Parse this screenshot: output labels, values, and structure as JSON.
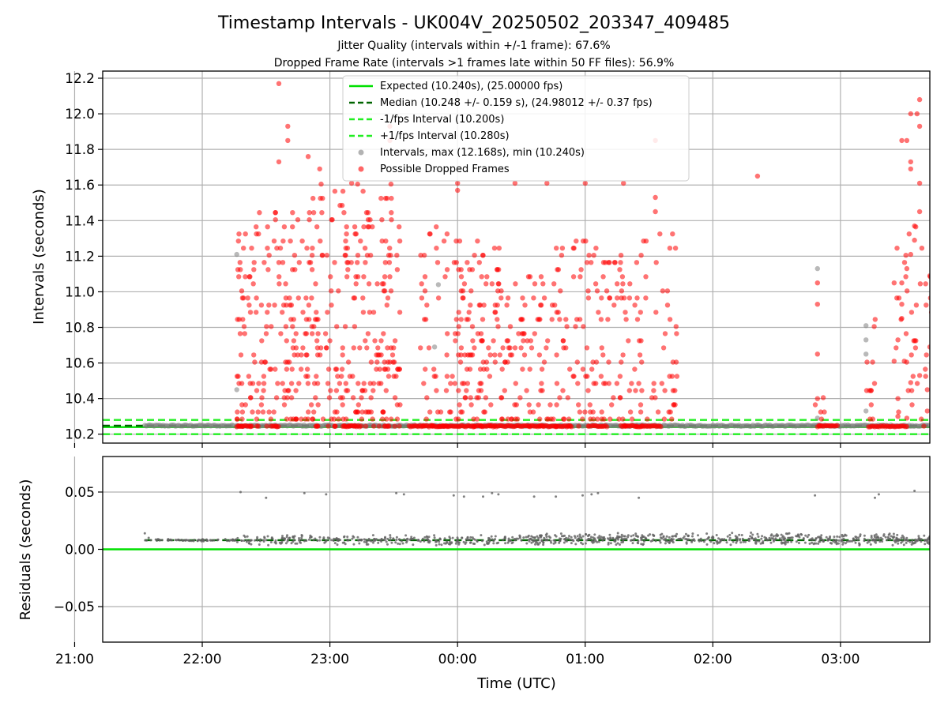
{
  "title": "Timestamp Intervals - UK004V_20250502_203347_409485",
  "subtitle_lines": [
    "Jitter Quality (intervals within +/-1 frame): 67.6%",
    "Dropped Frame Rate (intervals >1 frames late within 50 FF files): 56.9%"
  ],
  "colors": {
    "expected": "#00e000",
    "median": "#006400",
    "interval_limit": "#22ee22",
    "grey_points": "#808080",
    "dropped_points": "#ff0000",
    "residual_points": "#606060"
  },
  "chart_data": [
    {
      "type": "scatter",
      "ylabel": "Intervals (seconds)",
      "grid": true,
      "legend_placement": "top-center",
      "x_unit": "hours since 20:00 UTC",
      "xlim": [
        1.22,
        7.7
      ],
      "ylim": [
        10.15,
        12.24
      ],
      "yticks": [
        10.2,
        10.4,
        10.6,
        10.8,
        11.0,
        11.2,
        11.4,
        11.6,
        11.8,
        12.0,
        12.2
      ],
      "ytick_labels": [
        "10.2",
        "10.4",
        "10.6",
        "10.8",
        "11.0",
        "11.2",
        "11.4",
        "11.6",
        "11.8",
        "12.0",
        "12.2"
      ],
      "hlines": [
        {
          "name": "Expected (10.240s), (25.00000 fps)",
          "y": 10.24,
          "style": "solid",
          "color_key": "expected"
        },
        {
          "name": "Median (10.248 +/- 0.159 s), (24.98012 +/- 0.37 fps)",
          "y": 10.248,
          "style": "dashed",
          "color_key": "median"
        },
        {
          "name": "-1/fps Interval (10.200s)",
          "y": 10.2,
          "style": "dashed",
          "color_key": "interval_limit"
        },
        {
          "name": "+1/fps Interval (10.280s)",
          "y": 10.28,
          "style": "dashed",
          "color_key": "interval_limit"
        }
      ],
      "series": [
        {
          "name": "Intervals, max (12.168s), min (10.240s)",
          "color_key": "grey_points",
          "baseline_ranges": [
            [
              1.55,
              2.25
            ],
            [
              2.27,
              7.7
            ]
          ],
          "baseline_y": 10.248,
          "points": [
            [
              2.27,
              11.21
            ],
            [
              2.27,
              10.45
            ],
            [
              2.27,
              10.25
            ],
            [
              4.55,
              10.25
            ],
            [
              3.85,
              11.04
            ],
            [
              3.82,
              10.69
            ],
            [
              6.82,
              11.13
            ],
            [
              6.82,
              10.29
            ],
            [
              7.2,
              10.81
            ],
            [
              7.2,
              10.73
            ],
            [
              7.2,
              10.65
            ],
            [
              7.2,
              10.33
            ]
          ]
        },
        {
          "name": "Possible Dropped Frames",
          "color_key": "dropped_points",
          "clusters": [
            {
              "x": [
                2.27,
                2.5
              ],
              "y": [
                10.24,
                11.5
              ],
              "n": 75
            },
            {
              "x": [
                2.5,
                2.85
              ],
              "y": [
                10.24,
                11.5
              ],
              "n": 110
            },
            {
              "x": [
                2.85,
                3.15
              ],
              "y": [
                10.24,
                11.6
              ],
              "n": 105
            },
            {
              "x": [
                3.15,
                3.55
              ],
              "y": [
                10.24,
                11.6
              ],
              "n": 150
            },
            {
              "x": [
                3.7,
                4.0
              ],
              "y": [
                10.24,
                11.4
              ],
              "n": 55
            },
            {
              "x": [
                4.0,
                4.35
              ],
              "y": [
                10.24,
                11.3
              ],
              "n": 115
            },
            {
              "x": [
                4.35,
                4.75
              ],
              "y": [
                10.24,
                11.1
              ],
              "n": 80
            },
            {
              "x": [
                4.75,
                5.1
              ],
              "y": [
                10.24,
                11.3
              ],
              "n": 80
            },
            {
              "x": [
                5.1,
                5.45
              ],
              "y": [
                10.24,
                11.2
              ],
              "n": 75
            },
            {
              "x": [
                5.45,
                5.72
              ],
              "y": [
                10.24,
                11.5
              ],
              "n": 40
            },
            {
              "x": [
                6.8,
                6.88
              ],
              "y": [
                10.24,
                10.4
              ],
              "n": 6
            },
            {
              "x": [
                7.2,
                7.28
              ],
              "y": [
                10.24,
                10.95
              ],
              "n": 12
            },
            {
              "x": [
                7.43,
                7.78
              ],
              "y": [
                10.24,
                11.4
              ],
              "n": 55
            }
          ],
          "baseline_ranges": [
            [
              2.27,
              2.38
            ],
            [
              2.55,
              2.6
            ],
            [
              3.1,
              3.25
            ],
            [
              3.62,
              4.9
            ],
            [
              5.05,
              5.18
            ],
            [
              5.28,
              5.6
            ],
            [
              6.82,
              6.98
            ],
            [
              7.22,
              7.52
            ],
            [
              7.72,
              7.92
            ]
          ],
          "baseline_y": 10.245,
          "points": [
            [
              2.6,
              12.17
            ],
            [
              2.67,
              11.93
            ],
            [
              2.67,
              11.85
            ],
            [
              2.6,
              11.73
            ],
            [
              2.83,
              11.76
            ],
            [
              2.92,
              11.69
            ],
            [
              3.17,
              11.61
            ],
            [
              3.47,
              11.93
            ],
            [
              3.47,
              11.85
            ],
            [
              4.0,
              11.61
            ],
            [
              4.0,
              11.57
            ],
            [
              4.45,
              11.61
            ],
            [
              4.7,
              11.61
            ],
            [
              5.0,
              11.61
            ],
            [
              5.3,
              11.61
            ],
            [
              5.55,
              11.53
            ],
            [
              5.55,
              11.45
            ],
            [
              5.55,
              11.85
            ],
            [
              6.35,
              11.65
            ],
            [
              6.82,
              11.05
            ],
            [
              6.82,
              10.93
            ],
            [
              6.82,
              10.65
            ],
            [
              6.82,
              10.4
            ],
            [
              7.48,
              11.85
            ],
            [
              7.52,
              11.85
            ],
            [
              7.55,
              11.73
            ],
            [
              7.55,
              11.69
            ],
            [
              7.62,
              12.08
            ],
            [
              7.6,
              12.0
            ],
            [
              7.55,
              12.0
            ],
            [
              7.62,
              11.93
            ],
            [
              7.62,
              11.61
            ],
            [
              7.62,
              11.45
            ],
            [
              7.58,
              11.37
            ],
            [
              7.58,
              11.29
            ],
            [
              7.55,
              11.21
            ],
            [
              7.52,
              11.13
            ],
            [
              7.48,
              11.05
            ],
            [
              7.48,
              10.93
            ],
            [
              7.48,
              10.85
            ],
            [
              7.45,
              10.73
            ],
            [
              7.5,
              10.61
            ],
            [
              7.55,
              10.49
            ],
            [
              7.7,
              11.09
            ],
            [
              7.7,
              10.69
            ],
            [
              7.62,
              10.53
            ],
            [
              7.68,
              10.45
            ],
            [
              7.68,
              10.33
            ],
            [
              7.45,
              10.4
            ],
            [
              7.45,
              10.3
            ],
            [
              7.52,
              10.29
            ],
            [
              7.42,
              11.05
            ],
            [
              7.42,
              10.61
            ]
          ]
        }
      ]
    },
    {
      "type": "scatter",
      "ylabel": "Residuals (seconds)",
      "xlabel": "Time (UTC)",
      "grid": true,
      "x_unit": "hours since 20:00 UTC",
      "xlim": [
        1.22,
        7.7
      ],
      "ylim": [
        -0.081,
        0.081
      ],
      "yticks": [
        -0.05,
        0.0,
        0.05
      ],
      "ytick_labels": [
        "−0.05",
        "0.00",
        "0.05"
      ],
      "xticks": [
        1,
        2,
        3,
        4,
        5,
        6,
        7
      ],
      "xtick_labels": [
        "21:00",
        "22:00",
        "23:00",
        "00:00",
        "01:00",
        "02:00",
        "03:00"
      ],
      "hlines": [
        {
          "y": 0.0,
          "style": "solid",
          "color_key": "expected"
        },
        {
          "y": 0.008,
          "style": "dashed",
          "color_key": "median",
          "x_range": [
            1.55,
            7.7
          ]
        }
      ],
      "series": [
        {
          "name": "Residuals",
          "color_key": "residual_points",
          "bands": [
            {
              "x": [
                1.55,
                2.27
              ],
              "y": [
                0.007,
                0.009
              ],
              "n": 70
            },
            {
              "x": [
                2.27,
                4.55
              ],
              "y": [
                0.003,
                0.013
              ],
              "n": 300
            },
            {
              "x": [
                4.55,
                7.42
              ],
              "y": [
                0.003,
                0.015
              ],
              "n": 520
            },
            {
              "x": [
                7.42,
                7.7
              ],
              "y": [
                0.003,
                0.013
              ],
              "n": 60
            }
          ],
          "points": [
            [
              1.55,
              0.014
            ],
            [
              1.58,
              0.01
            ],
            [
              2.3,
              0.05
            ],
            [
              2.5,
              0.045
            ],
            [
              2.8,
              0.049
            ],
            [
              2.97,
              0.048
            ],
            [
              3.52,
              0.049
            ],
            [
              3.58,
              0.048
            ],
            [
              3.97,
              0.047
            ],
            [
              4.05,
              0.046
            ],
            [
              4.2,
              0.046
            ],
            [
              4.27,
              0.049
            ],
            [
              4.32,
              0.048
            ],
            [
              4.6,
              0.046
            ],
            [
              4.77,
              0.046
            ],
            [
              4.98,
              0.047
            ],
            [
              5.05,
              0.048
            ],
            [
              5.1,
              0.049
            ],
            [
              5.42,
              0.045
            ],
            [
              6.8,
              0.047
            ],
            [
              7.27,
              0.045
            ],
            [
              7.3,
              0.048
            ],
            [
              7.58,
              0.051
            ]
          ]
        }
      ]
    }
  ]
}
